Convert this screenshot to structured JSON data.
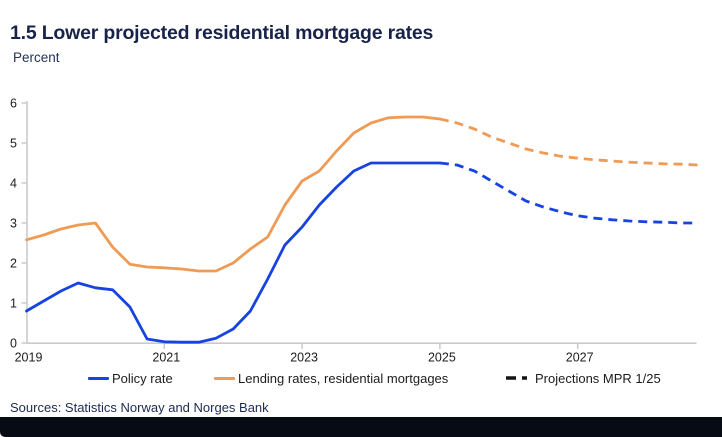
{
  "header": {
    "title": "1.5 Lower projected residential mortgage rates",
    "subtitle": "Percent"
  },
  "footer": {
    "sources": "Sources: Statistics Norway and Norges Bank"
  },
  "colors": {
    "title_text": "#18234a",
    "sources_text": "#1d2a50",
    "axis": "#c8cbce",
    "axis_label_text": "#1c1c1c",
    "policy_rate_line": "#1744e0",
    "lending_rate_line": "#ef9b55",
    "projection_legend": "#141414",
    "footer_bar": "#070b14",
    "background": "#ffffff"
  },
  "chart_data": {
    "type": "line",
    "title": "1.5 Lower projected residential mortgage rates",
    "subtitle_unit": "Percent",
    "xlabel": "",
    "ylabel": "Percent",
    "xlim": [
      2019.0,
      2028.75
    ],
    "ylim": [
      0,
      6
    ],
    "grid": false,
    "legend_position": "bottom",
    "y_ticks": [
      0,
      1,
      2,
      3,
      4,
      5,
      6
    ],
    "x_ticks": [
      2019,
      2021,
      2023,
      2025,
      2027
    ],
    "x_resolution": "quarterly",
    "projection_start": 2025.0,
    "projection_note": "values from 2025 onward are dashed projections (MPR 1/25)",
    "x": [
      2019.0,
      2019.25,
      2019.5,
      2019.75,
      2020.0,
      2020.25,
      2020.5,
      2020.75,
      2021.0,
      2021.25,
      2021.5,
      2021.75,
      2022.0,
      2022.25,
      2022.5,
      2022.75,
      2023.0,
      2023.25,
      2023.5,
      2023.75,
      2024.0,
      2024.25,
      2024.5,
      2024.75,
      2025.0,
      2025.25,
      2025.5,
      2025.75,
      2026.0,
      2026.25,
      2026.5,
      2026.75,
      2027.0,
      2027.25,
      2027.5,
      2027.75,
      2028.0,
      2028.25,
      2028.5,
      2028.75
    ],
    "series": [
      {
        "id": "policy-rate",
        "name": "Policy rate",
        "color": "#1744e0",
        "values": [
          0.8,
          1.05,
          1.3,
          1.5,
          1.38,
          1.33,
          0.9,
          0.1,
          0.03,
          0.02,
          0.02,
          0.12,
          0.35,
          0.8,
          1.6,
          2.45,
          2.9,
          3.45,
          3.9,
          4.3,
          4.5,
          4.5,
          4.5,
          4.5,
          4.5,
          4.45,
          4.3,
          4.05,
          3.8,
          3.55,
          3.4,
          3.28,
          3.18,
          3.12,
          3.08,
          3.05,
          3.03,
          3.02,
          3.0,
          3.0
        ]
      },
      {
        "id": "lending-rates",
        "name": "Lending rates, residential mortgages",
        "color": "#ef9b55",
        "values": [
          2.58,
          2.7,
          2.85,
          2.95,
          3.0,
          2.4,
          1.97,
          1.9,
          1.88,
          1.85,
          1.8,
          1.8,
          2.0,
          2.35,
          2.65,
          3.45,
          4.05,
          4.3,
          4.8,
          5.25,
          5.5,
          5.63,
          5.65,
          5.65,
          5.6,
          5.5,
          5.35,
          5.15,
          5.0,
          4.85,
          4.75,
          4.67,
          4.62,
          4.58,
          4.55,
          4.52,
          4.5,
          4.48,
          4.47,
          4.45
        ]
      }
    ],
    "legend": [
      {
        "label": "Policy rate",
        "style": "line",
        "color": "#1744e0"
      },
      {
        "label": "Lending rates, residential mortgages",
        "style": "line",
        "color": "#ef9b55"
      },
      {
        "label": "Projections MPR 1/25",
        "style": "dashes",
        "color": "#141414"
      }
    ]
  }
}
